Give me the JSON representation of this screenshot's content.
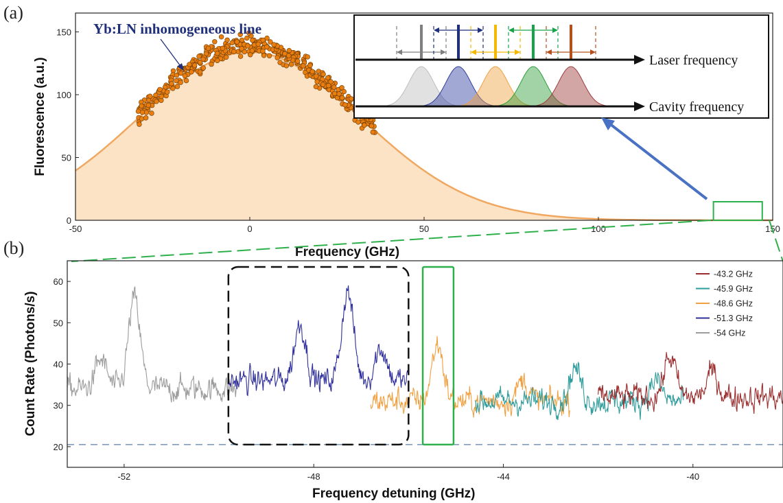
{
  "panel_labels": {
    "a": "(a)",
    "b": "(b)"
  },
  "annotation": {
    "text": "Yb:LN inhomogeneous line",
    "color": "#1f2f7a"
  },
  "inset": {
    "laser_label": "Laser frequency",
    "cavity_label": "Cavity frequency",
    "colors": [
      "#7f7f7f",
      "#1f2f7a",
      "#f5b800",
      "#17a34a",
      "#b5501a"
    ],
    "fill_colors": [
      "#bdbdbd",
      "#2f3e9e",
      "#f0a040",
      "#2e9e3a",
      "#9e3a3a"
    ]
  },
  "chart_data": [
    {
      "type": "scatter",
      "panel": "(a)",
      "xlabel": "Frequency (GHz)",
      "ylabel": "Fluorescence (a.u.)",
      "xlim": [
        -50,
        150
      ],
      "ylim": [
        0,
        165
      ],
      "xticks": [
        "-50",
        "0",
        "50",
        "100",
        "150"
      ],
      "yticks": [
        "0",
        "50",
        "100",
        "150"
      ],
      "fit": {
        "center": 0,
        "amplitude": 134,
        "sigma": 32,
        "color": "#f0a860",
        "fill": "#fce3c6"
      },
      "points": {
        "x_range": [
          -32,
          36
        ],
        "color": "#e87d10",
        "edge": "#6b3a00"
      },
      "highlight_box_x": [
        133,
        147
      ],
      "highlight_box_color": "#2db04b"
    },
    {
      "type": "line",
      "panel": "(b)",
      "xlabel": "Frequency detuning (GHz)",
      "ylabel": "Count Rate (Photons/s)",
      "xlim": [
        -53.2,
        -38.1
      ],
      "ylim": [
        15,
        65
      ],
      "xticks": [
        "-52",
        "-48",
        "-44",
        "-40"
      ],
      "yticks": [
        "20",
        "30",
        "40",
        "50",
        "60"
      ],
      "baseline": 20.5,
      "series": [
        {
          "name": "-43.2 GHz",
          "color": "#9b2d2d",
          "x_range": [
            -42,
            -38.1
          ],
          "mean": 32,
          "peaks": [
            [
              -40.5,
              10
            ],
            [
              -39.6,
              6
            ]
          ]
        },
        {
          "name": "-45.9 GHz",
          "color": "#2e9c9c",
          "x_range": [
            -44.6,
            -40.2
          ],
          "mean": 31,
          "peaks": [
            [
              -42.5,
              8
            ],
            [
              -40.8,
              5
            ]
          ]
        },
        {
          "name": "-48.6 GHz",
          "color": "#f0a040",
          "x_range": [
            -46.8,
            -42.6
          ],
          "mean": 31,
          "peaks": [
            [
              -45.4,
              14
            ],
            [
              -43.6,
              5
            ]
          ]
        },
        {
          "name": "-51.3 GHz",
          "color": "#2f2f9b",
          "x_range": [
            -49.8,
            -46
          ],
          "mean": 36,
          "peaks": [
            [
              -48.3,
              14
            ],
            [
              -47.3,
              22
            ],
            [
              -46.6,
              8
            ]
          ]
        },
        {
          "name": "-54 GHz",
          "color": "#9c9c9c",
          "x_range": [
            -53.2,
            -49.6
          ],
          "mean": 34,
          "peaks": [
            [
              -51.8,
              22
            ],
            [
              -52.5,
              7
            ]
          ]
        }
      ],
      "boxes": [
        {
          "x": [
            -49.8,
            -46
          ],
          "y": [
            20.5,
            63.5
          ],
          "style": "dashed",
          "color": "#111111"
        },
        {
          "x": [
            -45.7,
            -45.05
          ],
          "y": [
            20.5,
            63.5
          ],
          "style": "solid",
          "color": "#2db04b"
        }
      ]
    }
  ]
}
